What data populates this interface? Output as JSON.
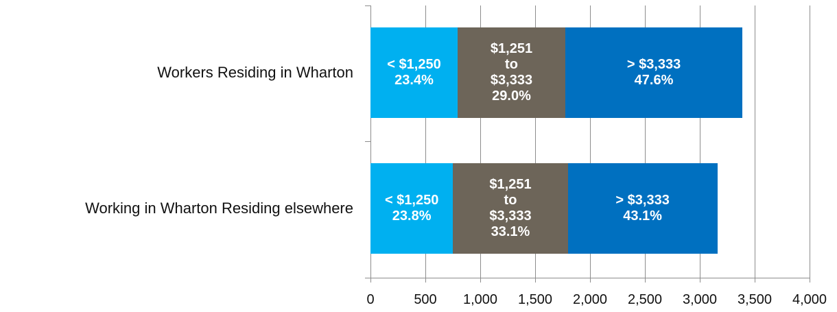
{
  "chart_data": {
    "type": "stacked-barh",
    "categories": [
      "Workers Residing in Wharton",
      "Working in Wharton Residing elsewhere"
    ],
    "series": [
      {
        "name": "< $1,250",
        "color": "#00b0f0",
        "values": [
          794,
          752
        ],
        "share_labels": [
          "23.4%",
          "23.8%"
        ]
      },
      {
        "name": "$1,251 to $3,333",
        "color": "#6d6559",
        "values": [
          981,
          1046
        ],
        "share_labels": [
          "29.0%",
          "33.1%"
        ]
      },
      {
        "name": "> $3,333",
        "color": "#0070c0",
        "values": [
          1613,
          1362
        ],
        "share_labels": [
          "47.6%",
          "43.1%"
        ]
      }
    ],
    "xlim": [
      0,
      4000
    ],
    "xticks": [
      0,
      500,
      {
        "value": 1000,
        "label": "1,000"
      },
      {
        "value": 1500,
        "label": "1,500"
      },
      {
        "value": 2000,
        "label": "2,000"
      },
      {
        "value": 2500,
        "label": "2,500"
      },
      {
        "value": 3000,
        "label": "3,000"
      },
      {
        "value": 3500,
        "label": "3,500"
      },
      {
        "value": 4000,
        "label": "4,000"
      }
    ],
    "grid": true
  }
}
